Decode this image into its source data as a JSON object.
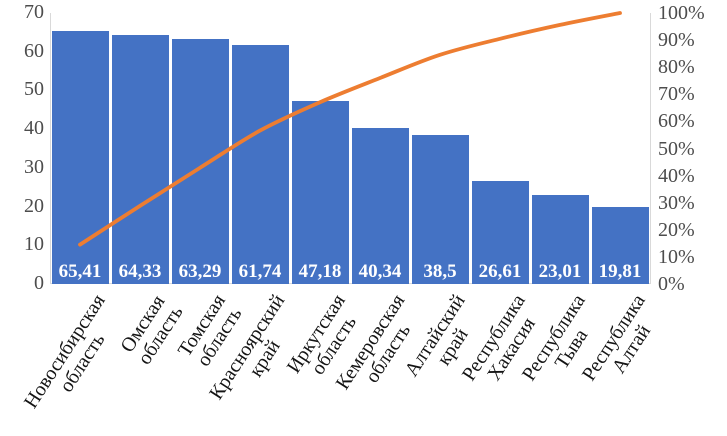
{
  "chart_data": {
    "type": "pareto",
    "title": "",
    "legend": "none",
    "gridlines": false,
    "categories": [
      "Новосибирская область",
      "Омская область",
      "Томская область",
      "Красноярский край",
      "Иркутская область",
      "Кемеровская область",
      "Алтайский край",
      "Республика Хакасия",
      "Республика Тыва",
      "Республика Алтай"
    ],
    "series": [
      {
        "name": "bar-values",
        "type": "bar",
        "values": [
          65.41,
          64.33,
          63.29,
          61.74,
          47.18,
          40.34,
          38.5,
          26.61,
          23.01,
          19.81
        ],
        "value_labels": [
          "65,41",
          "64,33",
          "63,29",
          "61,74",
          "47,18",
          "40,34",
          "38,5",
          "26,61",
          "23,01",
          "19,81"
        ]
      },
      {
        "name": "cumulative-percent-line",
        "type": "line",
        "values": [
          14.53,
          28.82,
          42.87,
          56.59,
          67.07,
          76.03,
          84.58,
          90.49,
          95.6,
          100
        ]
      }
    ],
    "left_axis": {
      "min": 0,
      "max": 70,
      "step": 10,
      "tick_labels": [
        "0",
        "10",
        "20",
        "30",
        "40",
        "50",
        "60",
        "70"
      ]
    },
    "right_axis": {
      "min": 0,
      "max": 100,
      "step": 10,
      "tick_labels": [
        "0%",
        "10%",
        "20%",
        "30%",
        "40%",
        "50%",
        "60%",
        "70%",
        "80%",
        "90%",
        "100%"
      ]
    },
    "colors": {
      "bar": "#4472C4",
      "line": "#ED7D31",
      "bar_label_text": "#FFFFFF",
      "axis_tick_text": "#4d4d4d",
      "category_text": "#141414",
      "axis_line": "#d9d9d9"
    }
  }
}
